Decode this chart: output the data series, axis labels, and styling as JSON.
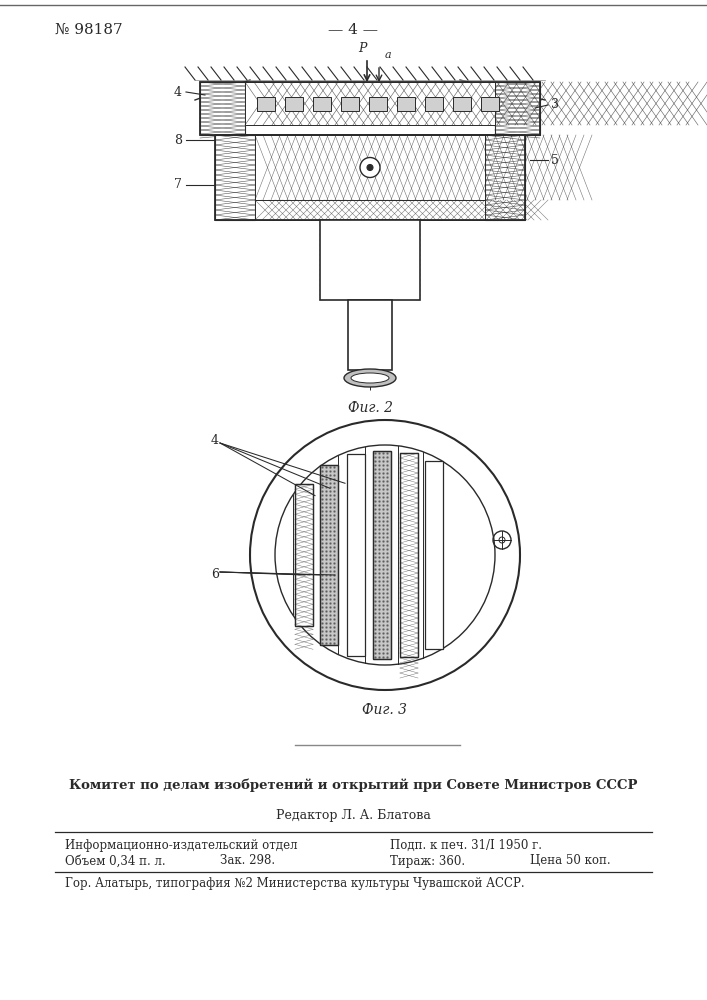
{
  "page_number": "№ 98187",
  "page_label": "— 4 —",
  "fig2_label": "Фиг. 2",
  "fig3_label": "Фиг. 3",
  "footer_bold": "Комитет по делам изобретений и открытий при Совете Министров СССР",
  "footer_editor": "Редактор Л. А. Блатова",
  "footer_row1_left": "Информационно-издательский отдел",
  "footer_row1_right": "Подп. к печ. 31/I 1950 г.",
  "footer_row2_left": "Объем 0,34 п. л.",
  "footer_row2_mid": "Зак. 298.",
  "footer_row2_right2": "Тираж: 360.",
  "footer_row2_price": "Цена 50 коп.",
  "footer_bottom": "Гор. Алатырь, типография №2 Министерства культуры Чувашской АССР.",
  "bg_color": "#ffffff",
  "line_color": "#2a2a2a",
  "label_4_fig2": "4",
  "label_8_fig2": "8",
  "label_3_fig2": "3",
  "label_5_fig2": "5",
  "label_7_fig2": "7",
  "label_P": "P",
  "label_a": "a",
  "label_4_fig3": "4",
  "label_6_fig3": "6"
}
